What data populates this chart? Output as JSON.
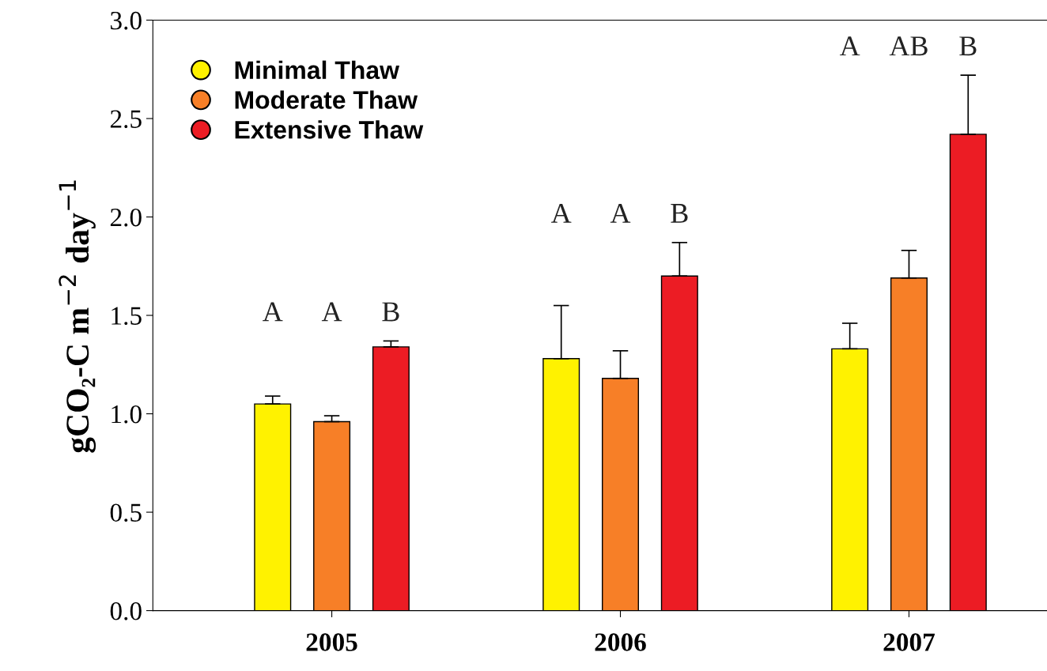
{
  "chart_data": {
    "type": "bar",
    "ylabel": "gCO₂-C m$^{−2}$ day$^{−1}$",
    "categories": [
      "2005",
      "2006",
      "2007"
    ],
    "series": [
      {
        "name": "Minimal Thaw",
        "color": "#fff200",
        "values": [
          1.05,
          1.28,
          1.33
        ],
        "errors": [
          [
            1.05,
            1.09
          ],
          [
            1.28,
            1.55
          ],
          [
            1.33,
            1.46
          ]
        ]
      },
      {
        "name": "Moderate Thaw",
        "color": "#f77f27",
        "values": [
          0.96,
          1.18,
          1.69
        ],
        "errors": [
          [
            0.96,
            0.99
          ],
          [
            1.18,
            1.32
          ],
          [
            1.69,
            1.83
          ]
        ]
      },
      {
        "name": "Extensive Thaw",
        "color": "#ec1c24",
        "values": [
          1.34,
          1.7,
          2.42
        ],
        "errors": [
          [
            1.34,
            1.37
          ],
          [
            1.7,
            1.87
          ],
          [
            2.42,
            2.72
          ]
        ]
      }
    ],
    "annotations": [
      "A",
      "A",
      "B",
      "A",
      "A",
      "B",
      "A",
      "AB",
      "B"
    ],
    "ylim": [
      0,
      3.0
    ],
    "yticks": [
      {
        "value": 0,
        "label": "0.0"
      },
      {
        "value": 0.5,
        "label": "0.5"
      },
      {
        "value": 1.0,
        "label": "1.0"
      },
      {
        "value": 1.5,
        "label": "1.5"
      },
      {
        "value": 2.0,
        "label": "2.0"
      },
      {
        "value": 2.5,
        "label": "2.5"
      },
      {
        "value": 3.0,
        "label": "3.0"
      }
    ],
    "legend": "top left",
    "marker": "circle",
    "grid": false
  }
}
